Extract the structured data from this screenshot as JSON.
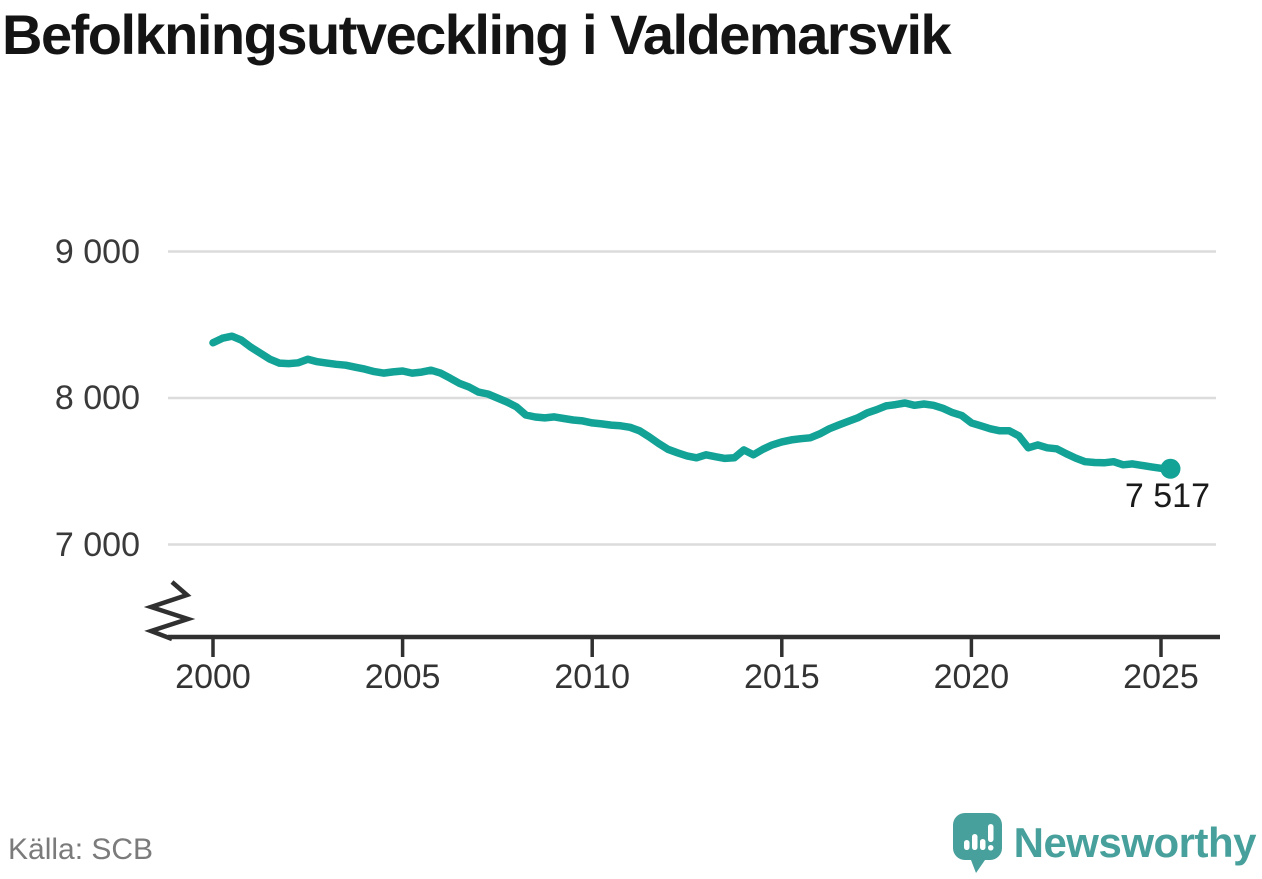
{
  "title": "Befolkningsutveckling i Valdemarsvik",
  "source": "Källa: SCB",
  "branding": {
    "name": "Newsworthy",
    "logo_icon": "newsworthy-speech-bubble-bar-chart-icon",
    "color": "#47a09b"
  },
  "colors": {
    "line": "#12a296",
    "grid": "#dcdcdc",
    "axis": "#303030",
    "tick_text": "#3a3a3a",
    "title_text": "#141414",
    "source_text": "#7b7b7b"
  },
  "chart_data": {
    "type": "line",
    "title": "Befolkningsutveckling i Valdemarsvik",
    "xlabel": "",
    "ylabel": "",
    "grid": "horizontal",
    "legend": "none",
    "axis_break": true,
    "ylim": [
      6800,
      9200
    ],
    "xlim": [
      1999.2,
      2026.6
    ],
    "x_start": 2000,
    "x_step": 0.25,
    "x_ticks": [
      2000,
      2005,
      2010,
      2015,
      2020,
      2025
    ],
    "y_ticks": [
      {
        "label": "9 000",
        "value": 9000
      },
      {
        "label": "8 000",
        "value": 8000
      },
      {
        "label": "7 000",
        "value": 7000
      }
    ],
    "end_label": "7 517",
    "end_value": 7517,
    "series": [
      {
        "name": "Befolkning",
        "values": [
          8377,
          8408,
          8422,
          8395,
          8347,
          8306,
          8265,
          8238,
          8235,
          8240,
          8265,
          8248,
          8238,
          8230,
          8224,
          8210,
          8197,
          8180,
          8170,
          8178,
          8184,
          8170,
          8177,
          8190,
          8170,
          8136,
          8100,
          8075,
          8040,
          8027,
          8000,
          7973,
          7940,
          7884,
          7870,
          7864,
          7871,
          7860,
          7850,
          7844,
          7830,
          7823,
          7815,
          7810,
          7800,
          7776,
          7735,
          7690,
          7650,
          7626,
          7605,
          7592,
          7612,
          7599,
          7588,
          7592,
          7646,
          7612,
          7650,
          7680,
          7700,
          7714,
          7722,
          7728,
          7755,
          7790,
          7816,
          7840,
          7864,
          7898,
          7920,
          7946,
          7955,
          7966,
          7950,
          7959,
          7950,
          7930,
          7900,
          7880,
          7830,
          7810,
          7790,
          7776,
          7776,
          7742,
          7660,
          7680,
          7660,
          7653,
          7620,
          7590,
          7565,
          7560,
          7558,
          7565,
          7544,
          7550,
          7540,
          7530,
          7520,
          7517
        ]
      }
    ]
  }
}
